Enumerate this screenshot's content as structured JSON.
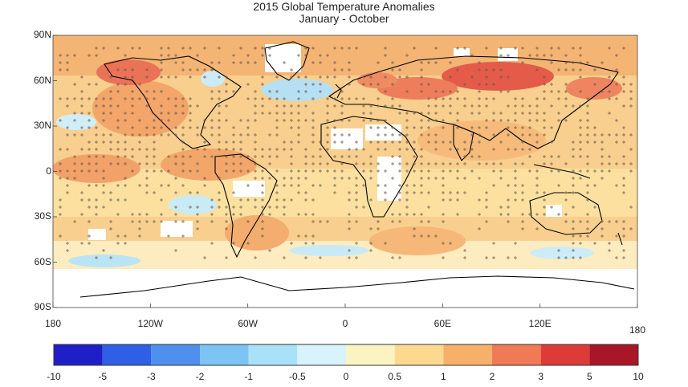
{
  "title": "2015 Global Temperature Anomalies",
  "subtitle": "January - October",
  "lat_labels": [
    "90N",
    "60N",
    "30N",
    "0",
    "30S",
    "60S",
    "90S"
  ],
  "lat_values": [
    90,
    60,
    30,
    0,
    -30,
    -60,
    -90
  ],
  "lon_labels": [
    "180",
    "120W",
    "60W",
    "0",
    "60E",
    "120E",
    "180"
  ],
  "lon_values": [
    -180,
    -120,
    -60,
    0,
    60,
    120,
    180
  ],
  "colorbar": {
    "ticks": [
      "-10",
      "-5",
      "-3",
      "-2",
      "-1",
      "-0.5",
      "0",
      "0.5",
      "1",
      "2",
      "3",
      "5",
      "10"
    ],
    "colors": [
      "#1f1fc8",
      "#2e5fe6",
      "#4f90ee",
      "#7cc4f4",
      "#a9e2f8",
      "#d8f3fb",
      "#fbf4c2",
      "#fbd98f",
      "#f6b06a",
      "#f07a55",
      "#dc3b37",
      "#a81628"
    ]
  },
  "palette": {
    "ocean_warm": "#f8cf8e",
    "land_warm": "#f4ad68",
    "hot": "#ee7f5c",
    "very_hot": "#d84c44",
    "cool": "#b8e4f4",
    "no_data": "#ffffff",
    "coast": "#000000"
  }
}
